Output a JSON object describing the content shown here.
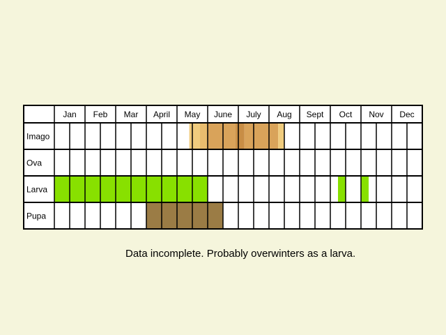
{
  "chart_data": {
    "type": "table",
    "months": [
      "Jan",
      "Feb",
      "Mar",
      "April",
      "May",
      "June",
      "July",
      "Aug",
      "Sept",
      "Oct",
      "Nov",
      "Dec"
    ],
    "rows": [
      {
        "label": "Imago",
        "spans": [
          {
            "start_month": 4.4,
            "end_month": 4.75,
            "color": "#f0cc7e"
          },
          {
            "start_month": 4.75,
            "end_month": 5.0,
            "color": "#e9bc6e"
          },
          {
            "start_month": 5.0,
            "end_month": 5.9,
            "color": "#d9a35a"
          },
          {
            "start_month": 5.9,
            "end_month": 6.0,
            "color": "#cc9249"
          },
          {
            "start_month": 6.0,
            "end_month": 6.2,
            "color": "#c88d45"
          },
          {
            "start_month": 6.2,
            "end_month": 7.3,
            "color": "#d9a35a"
          },
          {
            "start_month": 7.3,
            "end_month": 7.5,
            "color": "#f0cc7e"
          }
        ]
      },
      {
        "label": "Ova",
        "spans": []
      },
      {
        "label": "Larva",
        "spans": [
          {
            "start_month": 0.0,
            "end_month": 5.0,
            "color": "#88e000"
          },
          {
            "start_month": 9.25,
            "end_month": 9.5,
            "color": "#88e000"
          },
          {
            "start_month": 10.0,
            "end_month": 10.25,
            "color": "#88e000"
          }
        ]
      },
      {
        "label": "Pupa",
        "spans": [
          {
            "start_month": 3.0,
            "end_month": 5.5,
            "color": "#9b7c45"
          }
        ]
      }
    ],
    "note": "Data incomplete. Probably overwinters as a larva."
  }
}
